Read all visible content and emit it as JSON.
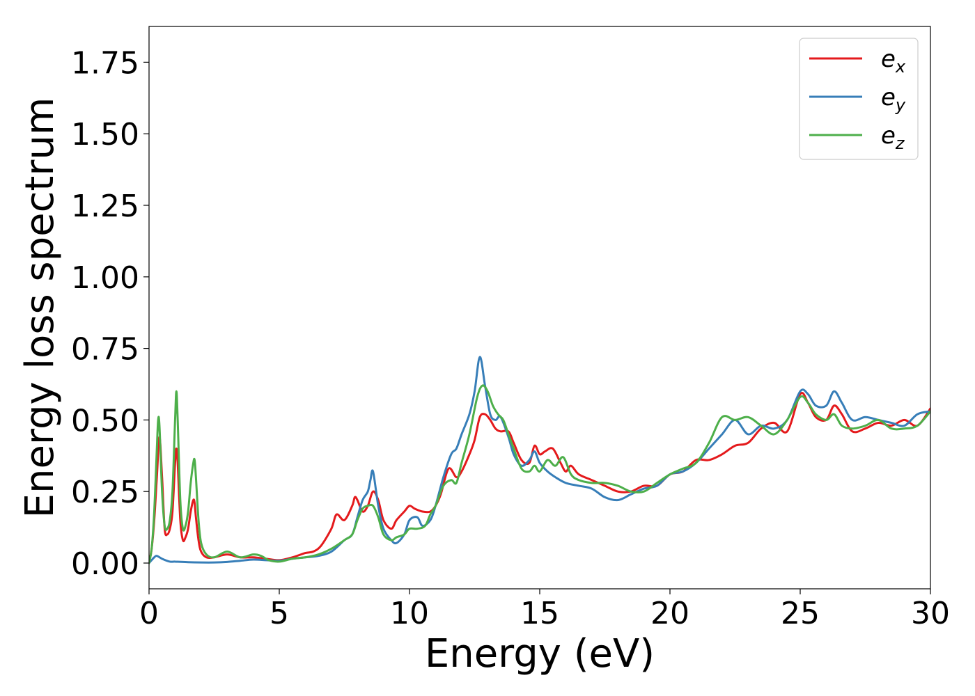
{
  "chart_data": {
    "type": "line",
    "title": "",
    "xlabel": "Energy (eV)",
    "ylabel": "Energy loss spectrum",
    "xlim": [
      0,
      30
    ],
    "ylim": [
      -0.09,
      1.875
    ],
    "xticks": [
      0,
      5,
      10,
      15,
      20,
      25,
      30
    ],
    "xtick_labels": [
      "0",
      "5",
      "10",
      "15",
      "20",
      "25",
      "30"
    ],
    "yticks": [
      0.0,
      0.25,
      0.5,
      0.75,
      1.0,
      1.25,
      1.5,
      1.75
    ],
    "ytick_labels": [
      "0.00",
      "0.25",
      "0.50",
      "0.75",
      "1.00",
      "1.25",
      "1.50",
      "1.75"
    ],
    "grid": false,
    "legend_position": "top-right",
    "series": [
      {
        "name": "e_x",
        "legend_base": "e",
        "legend_sub": "x",
        "color": "#e41a1c",
        "x": [
          0,
          0.1,
          0.2,
          0.3,
          0.4,
          0.5,
          0.6,
          0.7,
          0.8,
          0.9,
          1.0,
          1.05,
          1.1,
          1.2,
          1.3,
          1.4,
          1.5,
          1.6,
          1.7,
          1.75,
          1.8,
          1.9,
          2.0,
          2.2,
          2.5,
          3.0,
          3.5,
          4.0,
          4.5,
          5.0,
          5.5,
          6.0,
          6.3,
          6.6,
          7.0,
          7.2,
          7.5,
          7.8,
          7.9,
          8.0,
          8.2,
          8.4,
          8.6,
          8.8,
          9.0,
          9.3,
          9.5,
          9.8,
          10.0,
          10.2,
          10.5,
          10.8,
          11.0,
          11.2,
          11.5,
          11.8,
          12.0,
          12.3,
          12.5,
          12.7,
          12.9,
          13.1,
          13.3,
          13.5,
          13.8,
          14.0,
          14.3,
          14.6,
          14.8,
          15.0,
          15.2,
          15.5,
          15.8,
          16.0,
          16.2,
          16.5,
          17.0,
          17.5,
          18.0,
          18.5,
          19.0,
          19.5,
          20.0,
          20.5,
          21.0,
          21.5,
          22.0,
          22.5,
          23.0,
          23.5,
          24.0,
          24.5,
          25.0,
          25.3,
          25.6,
          26.0,
          26.3,
          26.6,
          27.0,
          27.5,
          28.0,
          28.5,
          29.0,
          29.5,
          30.0
        ],
        "y": [
          0.0,
          0.05,
          0.15,
          0.3,
          0.44,
          0.3,
          0.12,
          0.1,
          0.12,
          0.18,
          0.35,
          0.4,
          0.35,
          0.15,
          0.08,
          0.09,
          0.12,
          0.18,
          0.22,
          0.21,
          0.16,
          0.08,
          0.04,
          0.02,
          0.02,
          0.03,
          0.02,
          0.02,
          0.015,
          0.01,
          0.02,
          0.035,
          0.04,
          0.06,
          0.12,
          0.17,
          0.15,
          0.2,
          0.23,
          0.22,
          0.18,
          0.2,
          0.25,
          0.22,
          0.15,
          0.12,
          0.15,
          0.18,
          0.2,
          0.19,
          0.18,
          0.18,
          0.2,
          0.24,
          0.33,
          0.3,
          0.32,
          0.38,
          0.43,
          0.51,
          0.52,
          0.5,
          0.47,
          0.46,
          0.46,
          0.42,
          0.36,
          0.35,
          0.41,
          0.38,
          0.39,
          0.4,
          0.35,
          0.32,
          0.34,
          0.31,
          0.29,
          0.27,
          0.25,
          0.25,
          0.27,
          0.27,
          0.31,
          0.32,
          0.36,
          0.36,
          0.38,
          0.41,
          0.42,
          0.47,
          0.49,
          0.46,
          0.59,
          0.56,
          0.51,
          0.5,
          0.55,
          0.52,
          0.46,
          0.47,
          0.49,
          0.48,
          0.5,
          0.48,
          0.54
        ]
      },
      {
        "name": "e_y",
        "legend_base": "e",
        "legend_sub": "y",
        "color": "#377eb8",
        "x": [
          0,
          0.2,
          0.3,
          0.5,
          0.8,
          1.0,
          1.5,
          2.0,
          2.5,
          3.0,
          3.5,
          4.0,
          4.5,
          5.0,
          5.5,
          6.0,
          6.5,
          7.0,
          7.5,
          7.8,
          8.0,
          8.2,
          8.4,
          8.5,
          8.6,
          8.8,
          9.0,
          9.3,
          9.5,
          9.8,
          10.0,
          10.3,
          10.5,
          10.8,
          11.0,
          11.3,
          11.6,
          11.8,
          12.0,
          12.3,
          12.5,
          12.7,
          12.9,
          13.1,
          13.3,
          13.5,
          13.8,
          14.0,
          14.3,
          14.6,
          14.8,
          15.0,
          15.3,
          15.6,
          16.0,
          16.5,
          17.0,
          17.5,
          18.0,
          18.5,
          19.0,
          19.5,
          20.0,
          20.5,
          21.0,
          21.5,
          22.0,
          22.5,
          23.0,
          23.5,
          24.0,
          24.5,
          25.0,
          25.3,
          25.6,
          26.0,
          26.3,
          26.6,
          27.0,
          27.5,
          28.0,
          28.5,
          29.0,
          29.5,
          30.0
        ],
        "y": [
          0.0,
          0.02,
          0.025,
          0.015,
          0.005,
          0.005,
          0.003,
          0.002,
          0.002,
          0.004,
          0.008,
          0.012,
          0.01,
          0.008,
          0.015,
          0.02,
          0.025,
          0.04,
          0.08,
          0.1,
          0.16,
          0.22,
          0.25,
          0.29,
          0.32,
          0.2,
          0.12,
          0.08,
          0.07,
          0.1,
          0.15,
          0.16,
          0.13,
          0.15,
          0.2,
          0.3,
          0.38,
          0.4,
          0.45,
          0.52,
          0.6,
          0.72,
          0.62,
          0.52,
          0.5,
          0.51,
          0.44,
          0.38,
          0.34,
          0.36,
          0.39,
          0.35,
          0.32,
          0.3,
          0.28,
          0.27,
          0.26,
          0.23,
          0.22,
          0.24,
          0.26,
          0.27,
          0.31,
          0.32,
          0.35,
          0.4,
          0.45,
          0.5,
          0.45,
          0.48,
          0.47,
          0.5,
          0.6,
          0.59,
          0.55,
          0.55,
          0.6,
          0.56,
          0.5,
          0.51,
          0.5,
          0.49,
          0.48,
          0.52,
          0.53
        ]
      },
      {
        "name": "e_z",
        "legend_base": "e",
        "legend_sub": "z",
        "color": "#4daf4a",
        "x": [
          0,
          0.1,
          0.2,
          0.3,
          0.35,
          0.4,
          0.5,
          0.6,
          0.7,
          0.8,
          0.9,
          1.0,
          1.05,
          1.1,
          1.2,
          1.3,
          1.4,
          1.5,
          1.6,
          1.7,
          1.75,
          1.8,
          1.9,
          2.0,
          2.2,
          2.5,
          3.0,
          3.5,
          4.0,
          4.3,
          4.6,
          5.0,
          5.5,
          6.0,
          6.5,
          7.0,
          7.5,
          7.8,
          8.0,
          8.2,
          8.4,
          8.6,
          8.8,
          9.0,
          9.3,
          9.5,
          9.8,
          10.0,
          10.3,
          10.6,
          10.8,
          11.0,
          11.3,
          11.6,
          11.8,
          12.0,
          12.3,
          12.6,
          12.8,
          13.0,
          13.2,
          13.4,
          13.6,
          13.8,
          14.0,
          14.3,
          14.6,
          14.8,
          15.0,
          15.3,
          15.6,
          15.9,
          16.2,
          16.5,
          17.0,
          17.5,
          18.0,
          18.5,
          19.0,
          19.5,
          20.0,
          20.5,
          21.0,
          21.5,
          22.0,
          22.5,
          23.0,
          23.5,
          24.0,
          24.5,
          25.0,
          25.3,
          25.6,
          26.0,
          26.3,
          26.6,
          27.0,
          27.5,
          28.0,
          28.5,
          29.0,
          29.5,
          30.0
        ],
        "y": [
          0.0,
          0.05,
          0.18,
          0.4,
          0.5,
          0.48,
          0.25,
          0.13,
          0.12,
          0.15,
          0.25,
          0.5,
          0.6,
          0.5,
          0.22,
          0.12,
          0.13,
          0.18,
          0.28,
          0.35,
          0.36,
          0.3,
          0.15,
          0.07,
          0.03,
          0.02,
          0.04,
          0.02,
          0.03,
          0.025,
          0.01,
          0.005,
          0.015,
          0.02,
          0.03,
          0.05,
          0.08,
          0.1,
          0.15,
          0.19,
          0.2,
          0.2,
          0.16,
          0.1,
          0.08,
          0.09,
          0.1,
          0.12,
          0.12,
          0.13,
          0.17,
          0.2,
          0.27,
          0.29,
          0.28,
          0.35,
          0.45,
          0.58,
          0.62,
          0.6,
          0.55,
          0.52,
          0.5,
          0.45,
          0.4,
          0.33,
          0.32,
          0.34,
          0.32,
          0.36,
          0.34,
          0.37,
          0.31,
          0.29,
          0.28,
          0.28,
          0.27,
          0.25,
          0.25,
          0.28,
          0.31,
          0.33,
          0.35,
          0.42,
          0.51,
          0.5,
          0.51,
          0.48,
          0.45,
          0.5,
          0.58,
          0.56,
          0.52,
          0.5,
          0.52,
          0.48,
          0.47,
          0.48,
          0.5,
          0.47,
          0.47,
          0.48,
          0.53
        ]
      }
    ]
  }
}
